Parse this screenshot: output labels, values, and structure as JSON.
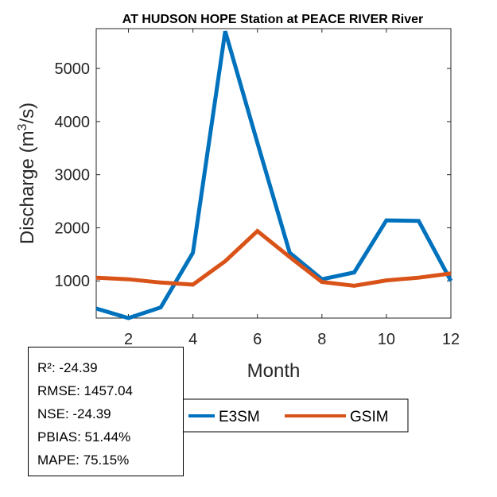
{
  "chart_data": {
    "type": "line",
    "title": "AT HUDSON HOPE  Station at  PEACE RIVER  River",
    "xlabel": "Month",
    "ylabel": "Discharge (m³/s)",
    "ylabel_parts": {
      "pre": "Discharge (m",
      "sup": "3",
      "post": "/s)"
    },
    "xlim": [
      1,
      12
    ],
    "ylim": [
      300,
      5750
    ],
    "xticks": [
      2,
      4,
      6,
      8,
      10,
      12
    ],
    "yticks": [
      1000,
      2000,
      3000,
      4000,
      5000
    ],
    "x": [
      1,
      2,
      3,
      4,
      5,
      6,
      7,
      8,
      9,
      10,
      11,
      12
    ],
    "series": [
      {
        "name": "E3SM",
        "color": "#0072BD",
        "values": [
          480,
          300,
          500,
          1530,
          5700,
          3600,
          1530,
          1030,
          1160,
          2140,
          2130,
          1000
        ]
      },
      {
        "name": "GSIM",
        "color": "#D95319",
        "values": [
          1060,
          1030,
          970,
          930,
          1370,
          1940,
          1450,
          980,
          910,
          1010,
          1060,
          1140
        ]
      }
    ]
  },
  "stats": {
    "r2": "R²: -24.39",
    "rmse": "RMSE: 1457.04",
    "nse": "NSE: -24.39",
    "pbias": "PBIAS: 51.44%",
    "mape": "MAPE: 75.15%"
  }
}
